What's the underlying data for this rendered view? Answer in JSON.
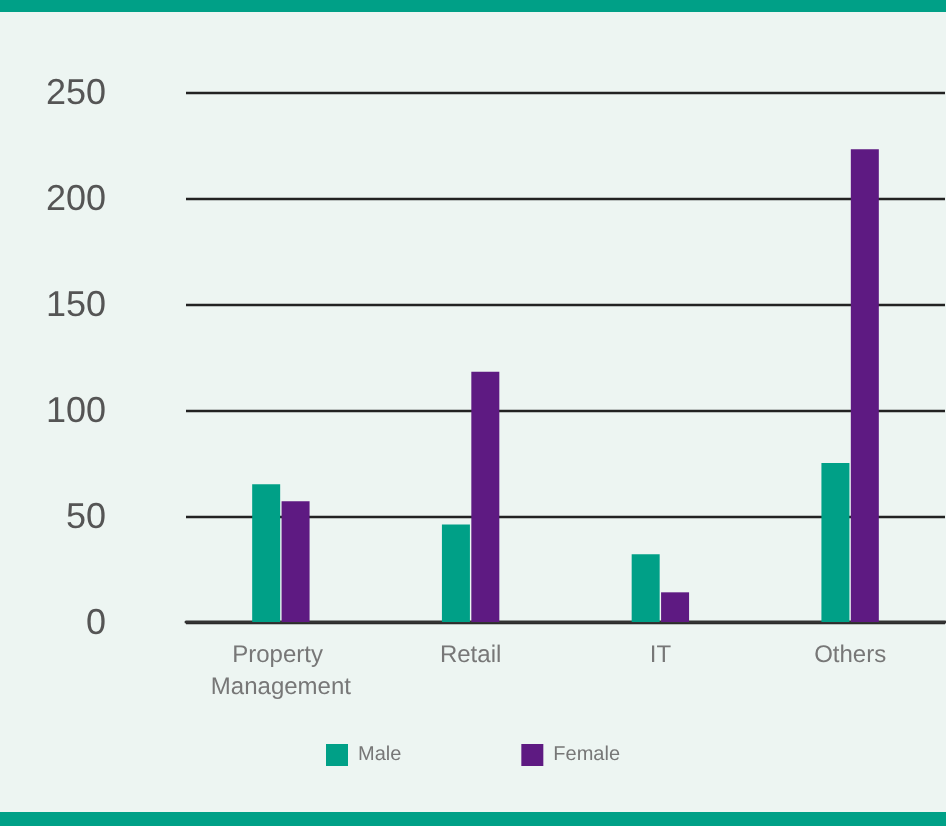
{
  "chart_data": {
    "type": "bar",
    "categories": [
      "Property Management",
      "Retail",
      "IT",
      "Others"
    ],
    "series": [
      {
        "name": "Male",
        "color": "#00a087",
        "values": [
          65,
          46,
          32,
          75
        ]
      },
      {
        "name": "Female",
        "color": "#5e1a82",
        "values": [
          57,
          118,
          14,
          223
        ]
      }
    ],
    "ylim": [
      0,
      250
    ],
    "yticks": [
      0,
      50,
      100,
      150,
      200,
      250
    ],
    "grid": "y",
    "legend": "bottom"
  }
}
